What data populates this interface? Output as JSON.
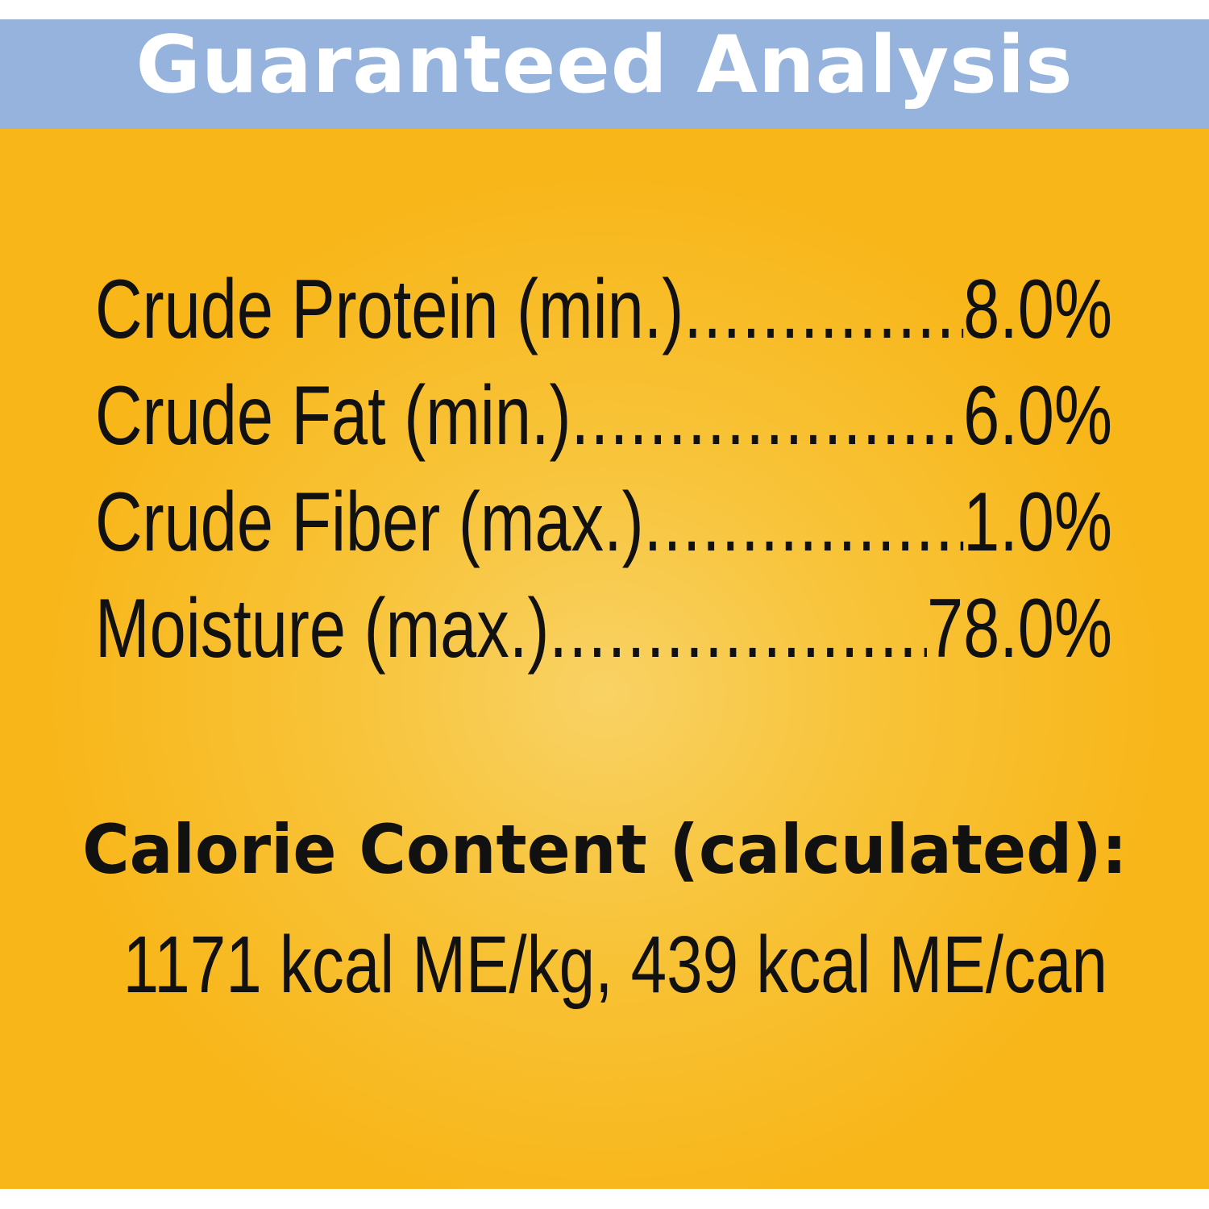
{
  "header": {
    "title": "Guaranteed Analysis"
  },
  "analysis": [
    {
      "label": "Crude Protein (min.)",
      "value": "8.0%"
    },
    {
      "label": "Crude Fat (min.)",
      "value": "6.0%"
    },
    {
      "label": "Crude Fiber (max.)",
      "value": "1.0%"
    },
    {
      "label": "Moisture (max.)",
      "value": "78.0%"
    }
  ],
  "calorie": {
    "heading": "Calorie Content (calculated):",
    "value": "1171 kcal ME/kg, 439 kcal ME/can"
  },
  "colors": {
    "header_band": "#95B3DD",
    "panel": "#F8B619",
    "panel_center": "#F9D265",
    "text": "#111111",
    "title": "#FFFFFF"
  }
}
